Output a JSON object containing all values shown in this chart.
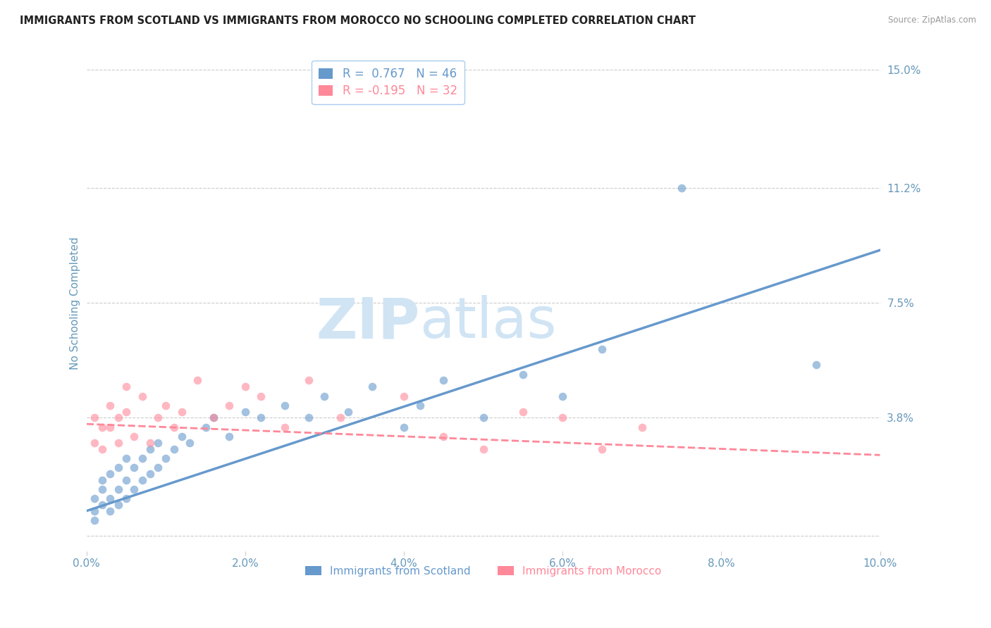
{
  "title": "IMMIGRANTS FROM SCOTLAND VS IMMIGRANTS FROM MOROCCO NO SCHOOLING COMPLETED CORRELATION CHART",
  "source": "Source: ZipAtlas.com",
  "ylabel": "No Schooling Completed",
  "xlim": [
    0.0,
    0.1
  ],
  "ylim": [
    -0.005,
    0.155
  ],
  "xticks": [
    0.0,
    0.02,
    0.04,
    0.06,
    0.08,
    0.1
  ],
  "yticks": [
    0.0,
    0.038,
    0.075,
    0.112,
    0.15
  ],
  "ytick_labels": [
    "",
    "3.8%",
    "7.5%",
    "11.2%",
    "15.0%"
  ],
  "xtick_labels": [
    "0.0%",
    "2.0%",
    "4.0%",
    "6.0%",
    "8.0%",
    "10.0%"
  ],
  "legend1_r": "R =  0.767",
  "legend1_n": "N = 46",
  "legend2_r": "R = -0.195",
  "legend2_n": "N = 32",
  "color_scotland": "#6699CC",
  "color_morocco": "#FF8899",
  "color_axis_label": "#6699BB",
  "color_tick_labels": "#6699BB",
  "watermark_zip": "ZIP",
  "watermark_atlas": "atlas",
  "watermark_color": "#D0E4F4",
  "series1_label": "Immigrants from Scotland",
  "series2_label": "Immigrants from Morocco",
  "scotland_trend_x": [
    0.0,
    0.1
  ],
  "scotland_trend_y": [
    0.008,
    0.092
  ],
  "morocco_trend_x": [
    0.0,
    0.1
  ],
  "morocco_trend_y": [
    0.036,
    0.026
  ],
  "scotland_x": [
    0.001,
    0.001,
    0.001,
    0.002,
    0.002,
    0.002,
    0.003,
    0.003,
    0.003,
    0.004,
    0.004,
    0.004,
    0.005,
    0.005,
    0.005,
    0.006,
    0.006,
    0.007,
    0.007,
    0.008,
    0.008,
    0.009,
    0.009,
    0.01,
    0.011,
    0.012,
    0.013,
    0.015,
    0.016,
    0.018,
    0.02,
    0.022,
    0.025,
    0.028,
    0.03,
    0.033,
    0.036,
    0.04,
    0.042,
    0.045,
    0.05,
    0.055,
    0.06,
    0.065,
    0.075,
    0.092
  ],
  "scotland_y": [
    0.005,
    0.008,
    0.012,
    0.01,
    0.015,
    0.018,
    0.008,
    0.012,
    0.02,
    0.01,
    0.015,
    0.022,
    0.012,
    0.018,
    0.025,
    0.015,
    0.022,
    0.018,
    0.025,
    0.02,
    0.028,
    0.022,
    0.03,
    0.025,
    0.028,
    0.032,
    0.03,
    0.035,
    0.038,
    0.032,
    0.04,
    0.038,
    0.042,
    0.038,
    0.045,
    0.04,
    0.048,
    0.035,
    0.042,
    0.05,
    0.038,
    0.052,
    0.045,
    0.06,
    0.112,
    0.055
  ],
  "morocco_x": [
    0.001,
    0.001,
    0.002,
    0.002,
    0.003,
    0.003,
    0.004,
    0.004,
    0.005,
    0.005,
    0.006,
    0.007,
    0.008,
    0.009,
    0.01,
    0.011,
    0.012,
    0.014,
    0.016,
    0.018,
    0.02,
    0.022,
    0.025,
    0.028,
    0.032,
    0.04,
    0.045,
    0.05,
    0.055,
    0.06,
    0.065,
    0.07
  ],
  "morocco_y": [
    0.03,
    0.038,
    0.028,
    0.035,
    0.035,
    0.042,
    0.03,
    0.038,
    0.04,
    0.048,
    0.032,
    0.045,
    0.03,
    0.038,
    0.042,
    0.035,
    0.04,
    0.05,
    0.038,
    0.042,
    0.048,
    0.045,
    0.035,
    0.05,
    0.038,
    0.045,
    0.032,
    0.028,
    0.04,
    0.038,
    0.028,
    0.035
  ]
}
